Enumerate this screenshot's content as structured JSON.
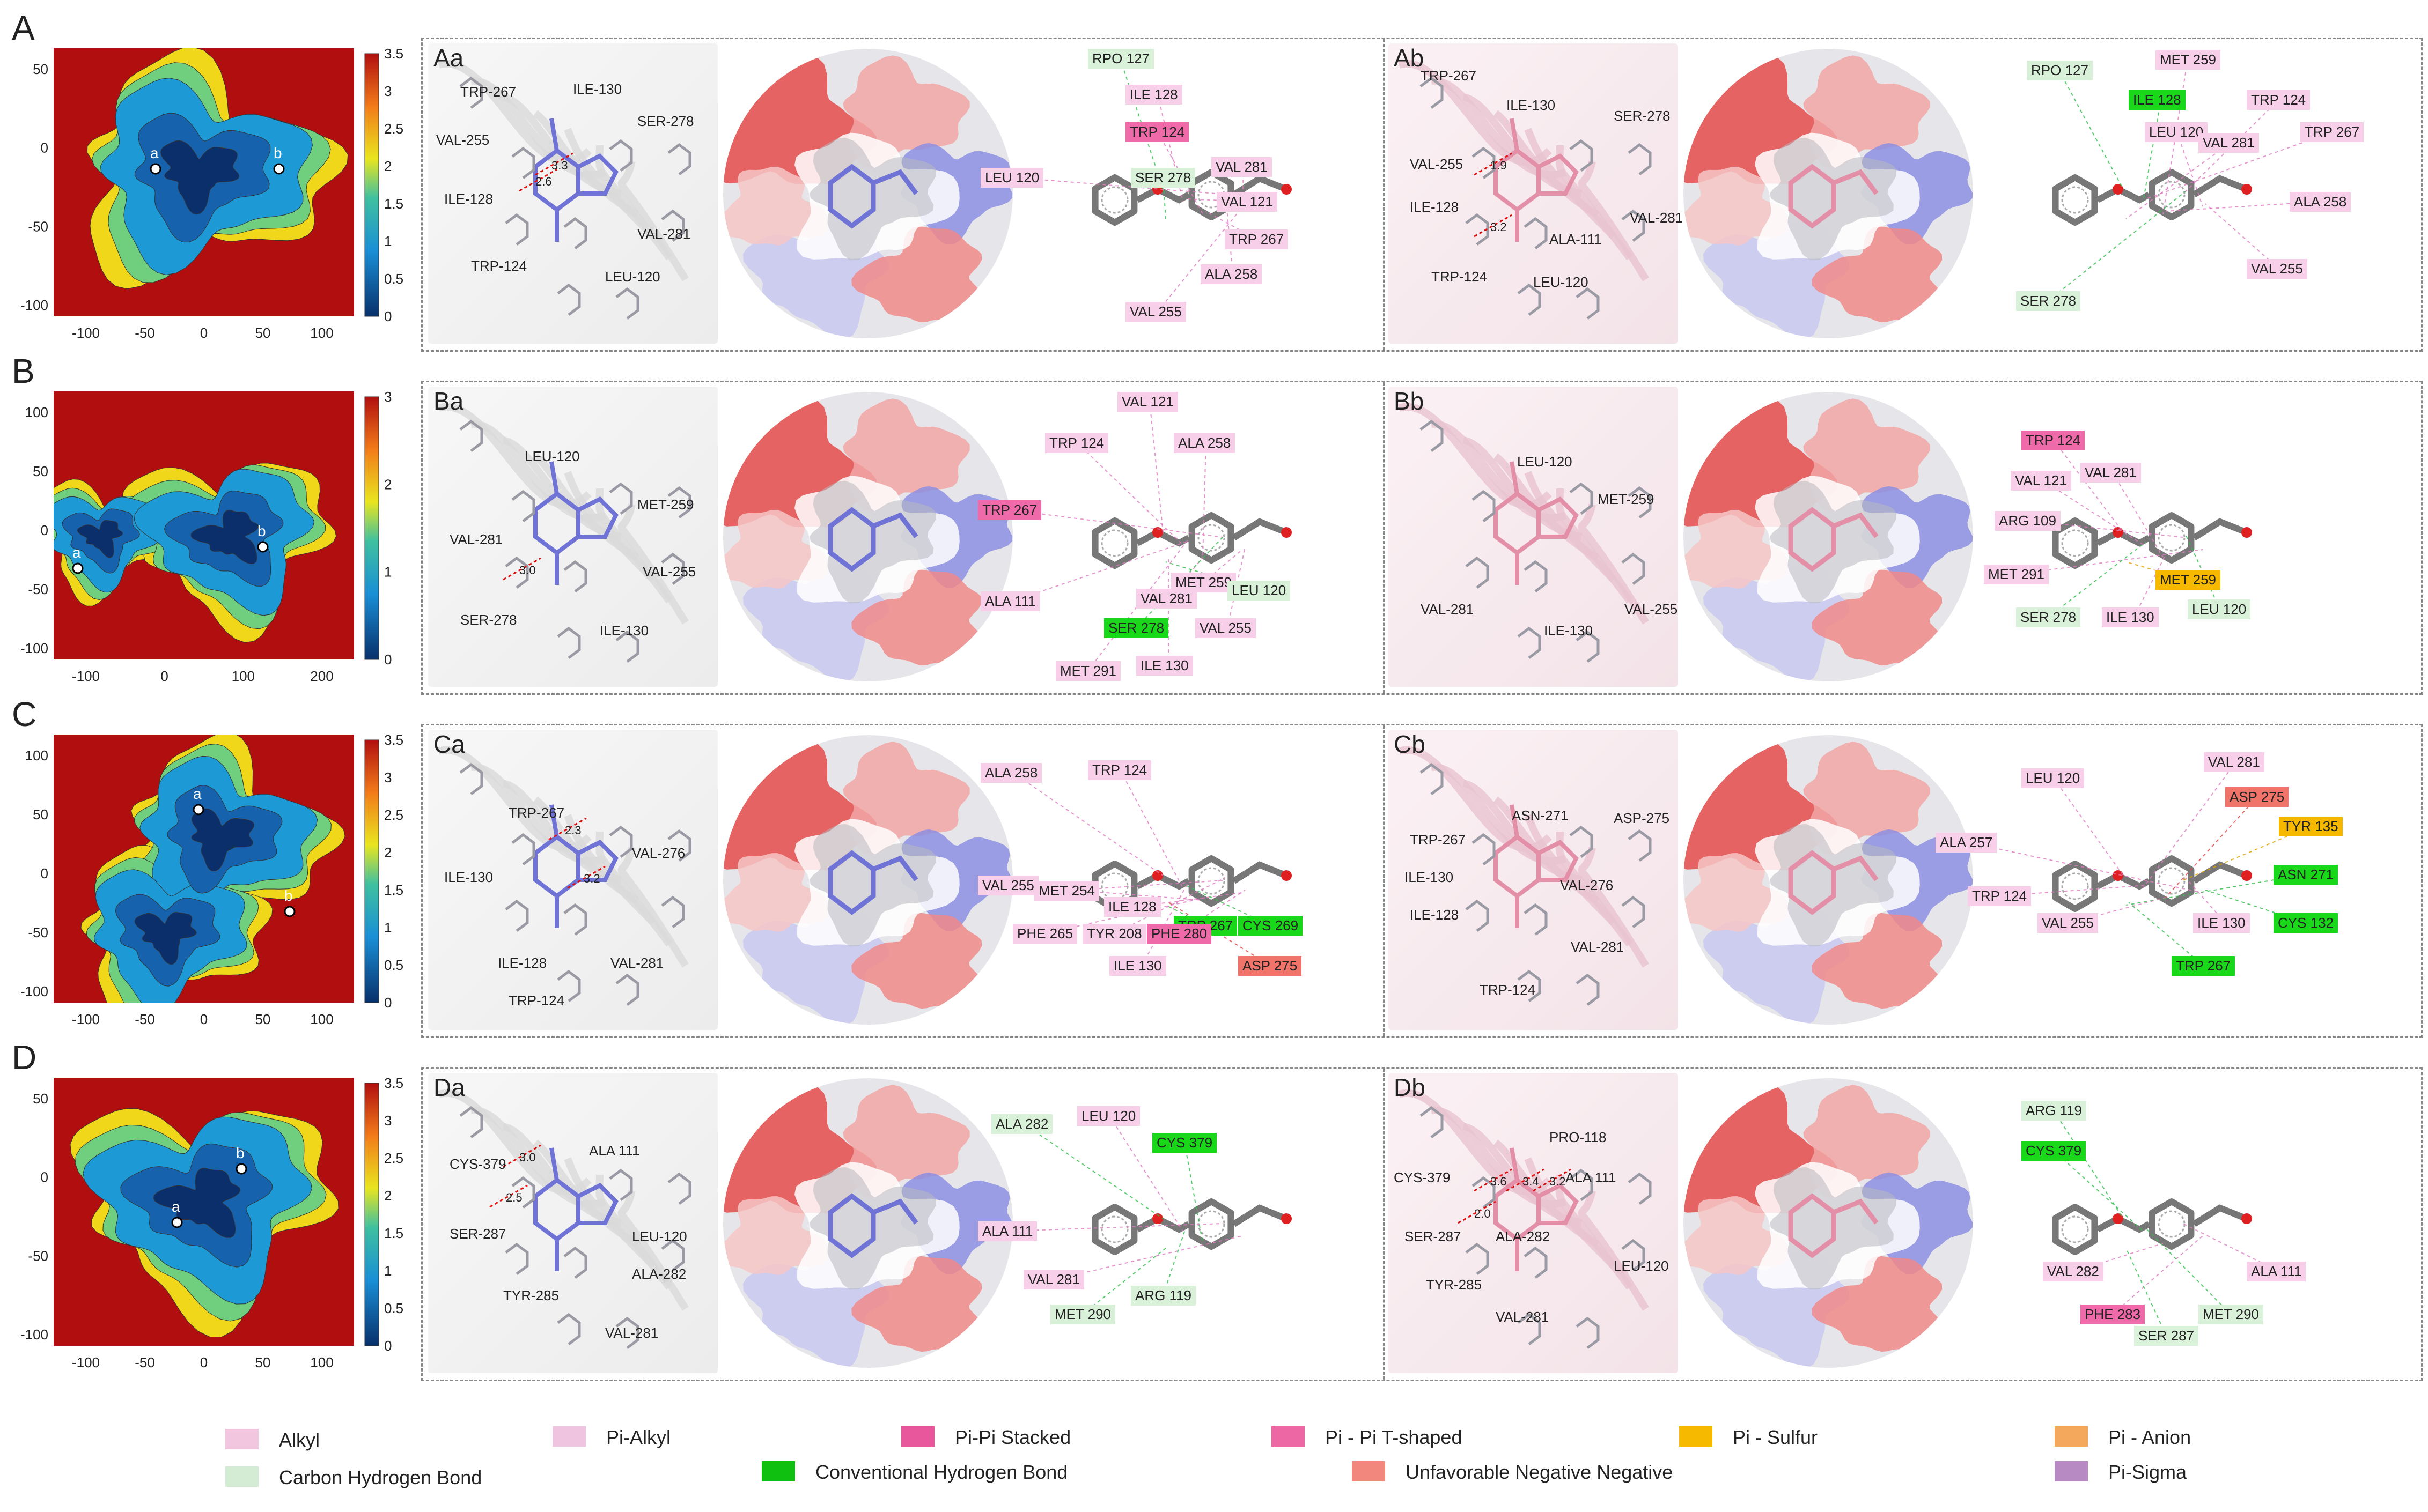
{
  "rows": [
    {
      "letter": "A",
      "colorbar": {
        "max": "3.5",
        "ticks": [
          "3.5",
          "3",
          "2.5",
          "2",
          "1.5",
          "1",
          "0.5",
          "0"
        ]
      },
      "x_ticks": [
        "-100",
        "-50",
        "0",
        "50",
        "100"
      ],
      "y_ticks": [
        "50",
        "0",
        "-50",
        "-100"
      ],
      "minima": [
        "a",
        "b"
      ],
      "panels": [
        {
          "label": "Aa",
          "residues": [
            "TRP-267",
            "ILE-130",
            "VAL-255",
            "SER-278",
            "ILE-128",
            "VAL-281",
            "TRP-124",
            "LEU-120"
          ],
          "distances": [
            "2.6",
            "3.3"
          ],
          "chips": [
            {
              "t": "RPO 127",
              "k": "ch"
            },
            {
              "t": "ILE 128",
              "k": "alkyl"
            },
            {
              "t": "TRP 124",
              "k": "pi_t"
            },
            {
              "t": "LEU 120",
              "k": "alkyl"
            },
            {
              "t": "VAL 281",
              "k": "alkyl"
            },
            {
              "t": "SER 278",
              "k": "ch"
            },
            {
              "t": "VAL 121",
              "k": "alkyl"
            },
            {
              "t": "TRP 267",
              "k": "alkyl"
            },
            {
              "t": "ALA 258",
              "k": "alkyl"
            },
            {
              "t": "VAL 255",
              "k": "alkyl"
            }
          ]
        },
        {
          "label": "Ab",
          "residues": [
            "TRP-267",
            "ILE-130",
            "SER-278",
            "VAL-255",
            "ILE-128",
            "VAL-281",
            "ALA-111",
            "TRP-124",
            "LEU-120"
          ],
          "distances": [
            "1.9",
            "3.2"
          ],
          "chips": [
            {
              "t": "RPO 127",
              "k": "ch"
            },
            {
              "t": "ILE 128",
              "k": "conv"
            },
            {
              "t": "MET 259",
              "k": "alkyl"
            },
            {
              "t": "TRP 124",
              "k": "alkyl"
            },
            {
              "t": "LEU 120",
              "k": "alkyl"
            },
            {
              "t": "VAL 281",
              "k": "alkyl"
            },
            {
              "t": "TRP 267",
              "k": "alkyl"
            },
            {
              "t": "ALA 258",
              "k": "alkyl"
            },
            {
              "t": "SER 278",
              "k": "ch"
            },
            {
              "t": "VAL 255",
              "k": "alkyl"
            }
          ]
        }
      ]
    },
    {
      "letter": "B",
      "colorbar": {
        "max": "3",
        "ticks": [
          "3",
          "2",
          "1",
          "0"
        ]
      },
      "x_ticks": [
        "-100",
        "0",
        "100",
        "200"
      ],
      "y_ticks": [
        "100",
        "50",
        "0",
        "-50",
        "-100"
      ],
      "minima": [
        "a",
        "b"
      ],
      "panels": [
        {
          "label": "Ba",
          "residues": [
            "LEU-120",
            "MET-259",
            "VAL-281",
            "VAL-255",
            "SER-278",
            "ILE-130"
          ],
          "distances": [
            "3.0"
          ],
          "chips": [
            {
              "t": "VAL 121",
              "k": "alkyl"
            },
            {
              "t": "TRP 124",
              "k": "alkyl"
            },
            {
              "t": "ALA 258",
              "k": "alkyl"
            },
            {
              "t": "TRP 267",
              "k": "pi_t"
            },
            {
              "t": "MET 259",
              "k": "alkyl"
            },
            {
              "t": "LEU 120",
              "k": "ch"
            },
            {
              "t": "ALA 111",
              "k": "alkyl"
            },
            {
              "t": "VAL 281",
              "k": "alkyl"
            },
            {
              "t": "SER 278",
              "k": "conv"
            },
            {
              "t": "VAL 255",
              "k": "alkyl"
            },
            {
              "t": "ILE 130",
              "k": "alkyl"
            },
            {
              "t": "MET 291",
              "k": "alkyl"
            }
          ]
        },
        {
          "label": "Bb",
          "residues": [
            "LEU-120",
            "MET-259",
            "VAL-281",
            "VAL-255",
            "ILE-130"
          ],
          "distances": [],
          "chips": [
            {
              "t": "TRP 124",
              "k": "pi_t"
            },
            {
              "t": "VAL 121",
              "k": "alkyl"
            },
            {
              "t": "VAL 281",
              "k": "alkyl"
            },
            {
              "t": "ARG 109",
              "k": "alkyl"
            },
            {
              "t": "MET 291",
              "k": "alkyl"
            },
            {
              "t": "MET 259",
              "k": "sulfur"
            },
            {
              "t": "SER 278",
              "k": "ch"
            },
            {
              "t": "ILE 130",
              "k": "alkyl"
            },
            {
              "t": "LEU 120",
              "k": "ch"
            }
          ]
        }
      ]
    },
    {
      "letter": "C",
      "colorbar": {
        "max": "3.5",
        "ticks": [
          "3.5",
          "3",
          "2.5",
          "2",
          "1.5",
          "1",
          "0.5",
          "0"
        ]
      },
      "x_ticks": [
        "-100",
        "-50",
        "0",
        "50",
        "100"
      ],
      "y_ticks": [
        "100",
        "50",
        "0",
        "-50",
        "-100"
      ],
      "minima": [
        "a",
        "b"
      ],
      "panels": [
        {
          "label": "Ca",
          "residues": [
            "TRP-267",
            "VAL-276",
            "ILE-130",
            "ILE-128",
            "VAL-281",
            "TRP-124"
          ],
          "distances": [
            "2.3",
            "3.2"
          ],
          "chips": [
            {
              "t": "ALA 258",
              "k": "alkyl"
            },
            {
              "t": "TRP 124",
              "k": "alkyl"
            },
            {
              "t": "VAL 255",
              "k": "alkyl"
            },
            {
              "t": "MET 254",
              "k": "alkyl"
            },
            {
              "t": "ILE 128",
              "k": "alkyl"
            },
            {
              "t": "TRP 267",
              "k": "conv"
            },
            {
              "t": "CYS 269",
              "k": "conv"
            },
            {
              "t": "PHE 265",
              "k": "alkyl"
            },
            {
              "t": "TYR 208",
              "k": "alkyl"
            },
            {
              "t": "PHE 280",
              "k": "pi_t"
            },
            {
              "t": "ASP 275",
              "k": "unfav"
            },
            {
              "t": "ILE 130",
              "k": "alkyl"
            }
          ]
        },
        {
          "label": "Cb",
          "residues": [
            "ASN-271",
            "ASP-275",
            "TRP-267",
            "ILE-130",
            "ILE-128",
            "VAL-276",
            "VAL-281",
            "TRP-124"
          ],
          "distances": [],
          "chips": [
            {
              "t": "LEU 120",
              "k": "alkyl"
            },
            {
              "t": "VAL 281",
              "k": "alkyl"
            },
            {
              "t": "ASP 275",
              "k": "unfav"
            },
            {
              "t": "TYR 135",
              "k": "sulfur"
            },
            {
              "t": "ALA 257",
              "k": "alkyl"
            },
            {
              "t": "ASN 271",
              "k": "conv"
            },
            {
              "t": "TRP 124",
              "k": "alkyl"
            },
            {
              "t": "VAL 255",
              "k": "alkyl"
            },
            {
              "t": "ILE 130",
              "k": "alkyl"
            },
            {
              "t": "CYS 132",
              "k": "conv"
            },
            {
              "t": "TRP 267",
              "k": "conv"
            }
          ]
        }
      ]
    },
    {
      "letter": "D",
      "colorbar": {
        "max": "3.5",
        "ticks": [
          "3.5",
          "3",
          "2.5",
          "2",
          "1.5",
          "1",
          "0.5",
          "0"
        ]
      },
      "x_ticks": [
        "-100",
        "-50",
        "0",
        "50",
        "100"
      ],
      "y_ticks": [
        "50",
        "0",
        "-50",
        "-100"
      ],
      "minima": [
        "a",
        "b"
      ],
      "panels": [
        {
          "label": "Da",
          "residues": [
            "CYS-379",
            "ALA 111",
            "SER-287",
            "LEU-120",
            "ALA-282",
            "TYR-285",
            "VAL-281"
          ],
          "distances": [
            "3.0",
            "2.5"
          ],
          "chips": [
            {
              "t": "ALA 282",
              "k": "ch"
            },
            {
              "t": "LEU 120",
              "k": "alkyl"
            },
            {
              "t": "CYS 379",
              "k": "conv"
            },
            {
              "t": "ALA 111",
              "k": "alkyl"
            },
            {
              "t": "VAL 281",
              "k": "alkyl"
            },
            {
              "t": "MET 290",
              "k": "ch"
            },
            {
              "t": "ARG 119",
              "k": "ch"
            }
          ]
        },
        {
          "label": "Db",
          "residues": [
            "PRO-118",
            "CYS-379",
            "ALA 111",
            "SER-287",
            "ALA-282",
            "LEU-120",
            "TYR-285",
            "VAL-281"
          ],
          "distances": [
            "3.6",
            "3.4",
            "3.2",
            "2.0"
          ],
          "chips": [
            {
              "t": "ARG 119",
              "k": "ch"
            },
            {
              "t": "CYS 379",
              "k": "conv"
            },
            {
              "t": "VAL 282",
              "k": "alkyl"
            },
            {
              "t": "ALA 111",
              "k": "alkyl"
            },
            {
              "t": "PHE 283",
              "k": "pi_t"
            },
            {
              "t": "SER 287",
              "k": "ch"
            },
            {
              "t": "MET 290",
              "k": "ch"
            }
          ]
        }
      ]
    }
  ],
  "legend": [
    {
      "label": "Alkyl",
      "color": "#f2c6df"
    },
    {
      "label": "Pi-Alkyl",
      "color": "#efc4e1"
    },
    {
      "label": "Pi-Pi Stacked",
      "color": "#e8579c"
    },
    {
      "label": "Pi - Pi T-shaped",
      "color": "#ec67a4"
    },
    {
      "label": "Pi - Sulfur",
      "color": "#f7b800"
    },
    {
      "label": "Pi - Anion",
      "color": "#f4a85b"
    },
    {
      "label": "Carbon Hydrogen Bond",
      "color": "#d4ecd4"
    },
    {
      "label": "Conventional Hydrogen Bond",
      "color": "#10c010"
    },
    {
      "label": "Unfavorable Negative Negative",
      "color": "#f2877e"
    },
    {
      "label": "Pi-Sigma",
      "color": "#b78ac4"
    }
  ],
  "chip_colors": {
    "alkyl": "#f7cfe8",
    "pi_t": "#ee6aa8",
    "ch": "#d9f0d9",
    "conv": "#19d719",
    "sulfur": "#f7b800",
    "unfav": "#f0746a"
  }
}
